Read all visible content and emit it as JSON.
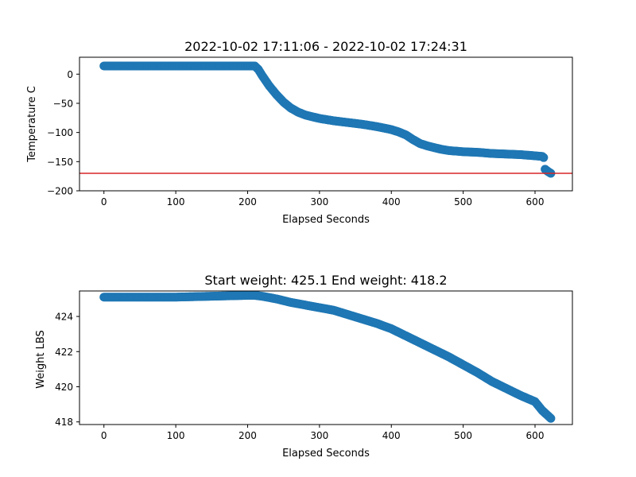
{
  "chart_data": [
    {
      "type": "scatter",
      "title": "2022-10-02 17:11:06 - 2022-10-02 17:24:31",
      "xlabel": "Elapsed Seconds",
      "ylabel": "Temperature C",
      "xlim": [
        -34,
        652
      ],
      "ylim": [
        -200,
        29
      ],
      "xticks": [
        0,
        100,
        200,
        300,
        400,
        500,
        600
      ],
      "yticks": [
        0,
        -50,
        -100,
        -150,
        -200
      ],
      "yticklabels": [
        "0",
        "−50",
        "−100",
        "−150",
        "−200"
      ],
      "grid": false,
      "marker_color": "#1f77b4",
      "reference_line": {
        "y": -170,
        "color": "#d62728"
      },
      "series": [
        {
          "x": [
            0,
            50,
            100,
            150,
            200,
            210,
            215,
            220,
            230,
            240,
            250,
            260,
            270,
            280,
            290,
            300,
            320,
            340,
            360,
            380,
            400,
            410,
            420,
            430,
            440,
            450,
            460,
            470,
            480,
            500,
            520,
            540,
            560,
            580,
            600,
            610,
            612,
            614,
            618,
            622
          ],
          "y": [
            14,
            14,
            14,
            14,
            14,
            14,
            8,
            -2,
            -20,
            -35,
            -48,
            -58,
            -65,
            -70,
            -73,
            -76,
            -80,
            -83,
            -86,
            -90,
            -95,
            -99,
            -104,
            -112,
            -119,
            -123,
            -126,
            -129,
            -131,
            -133,
            -134,
            -136,
            -137,
            -138,
            -140,
            -141,
            -143,
            -163,
            -167,
            -170
          ]
        }
      ]
    },
    {
      "type": "scatter",
      "title": "Start weight: 425.1 End weight: 418.2",
      "xlabel": "Elapsed Seconds",
      "ylabel": "Weight LBS",
      "xlim": [
        -34,
        652
      ],
      "ylim": [
        417.85,
        425.45
      ],
      "xticks": [
        0,
        100,
        200,
        300,
        400,
        500,
        600
      ],
      "yticks": [
        418,
        420,
        422,
        424
      ],
      "yticklabels": [
        "418",
        "420",
        "422",
        "424"
      ],
      "grid": false,
      "marker_color": "#1f77b4",
      "series": [
        {
          "x": [
            0,
            50,
            100,
            150,
            200,
            210,
            220,
            240,
            260,
            280,
            300,
            320,
            340,
            360,
            380,
            400,
            420,
            440,
            460,
            480,
            500,
            520,
            540,
            560,
            580,
            600,
            610,
            622
          ],
          "y": [
            425.1,
            425.1,
            425.1,
            425.15,
            425.2,
            425.2,
            425.15,
            425.0,
            424.8,
            424.65,
            424.5,
            424.35,
            424.1,
            423.85,
            423.6,
            423.3,
            422.9,
            422.5,
            422.1,
            421.7,
            421.25,
            420.8,
            420.3,
            419.9,
            419.5,
            419.15,
            418.65,
            418.2
          ]
        }
      ]
    }
  ]
}
